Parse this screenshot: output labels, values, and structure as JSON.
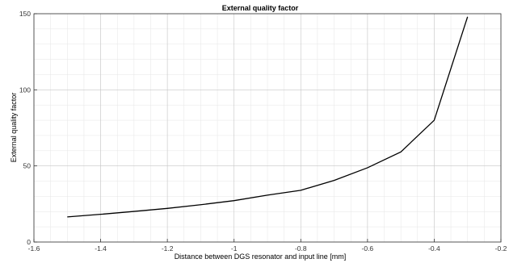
{
  "chart_data": {
    "type": "line",
    "title": "External quality factor",
    "xlabel": "Distance between DGS resonator and input line [mm]",
    "ylabel": "External quality factor",
    "xlim": [
      -1.6,
      -0.2
    ],
    "ylim": [
      0,
      150
    ],
    "xticks": [
      -1.6,
      -1.4,
      -1.2,
      -1,
      -0.8,
      -0.6,
      -0.4,
      -0.2
    ],
    "xtick_labels": [
      "-1.6",
      "-1.4",
      "-1.2",
      "-1",
      "-0.8",
      "-0.6",
      "-0.4",
      "-0.2"
    ],
    "yticks": [
      0,
      50,
      100,
      150
    ],
    "ytick_labels": [
      "0",
      "50",
      "100",
      "150"
    ],
    "x_minor_step": 0.05,
    "y_minor_step": 10,
    "grid": true,
    "series": [
      {
        "color": "#000000",
        "x": [
          -1.5,
          -1.4,
          -1.3,
          -1.2,
          -1.1,
          -1.0,
          -0.9,
          -0.8,
          -0.7,
          -0.6,
          -0.5,
          -0.4,
          -0.3
        ],
        "y": [
          16.5,
          18.2,
          20.1,
          22.1,
          24.5,
          27.2,
          30.8,
          34.0,
          40.5,
          48.8,
          59.2,
          80.0,
          148.0
        ]
      }
    ]
  }
}
